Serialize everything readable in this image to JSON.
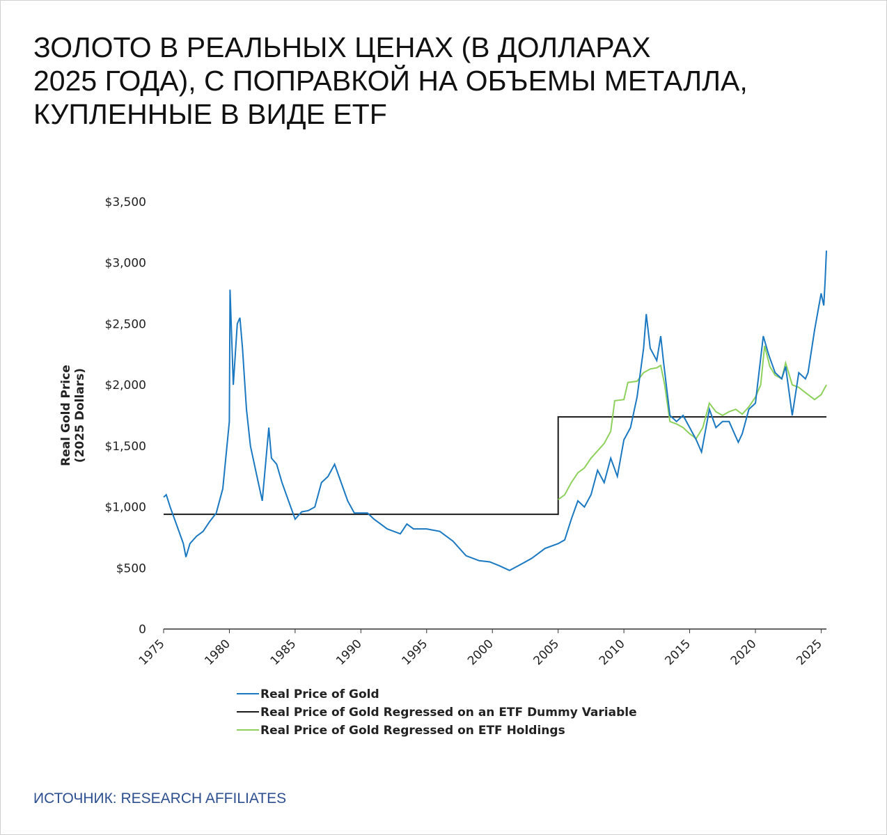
{
  "title": [
    "ЗОЛОТО В РЕАЛЬНЫХ ЦЕНАХ (В ДОЛЛАРАХ",
    "2025 ГОДА), С ПОПРАВКОЙ НА ОБЪЕМЫ МЕТАЛЛА,",
    "КУПЛЕННЫЕ В ВИДЕ ETF"
  ],
  "source": "ИСТОЧНИК: RESEARCH AFFILIATES",
  "chart_data": {
    "type": "line",
    "ylabel": [
      "Real Gold Price",
      "(2025 Dollars)"
    ],
    "xlim": [
      1975,
      2025.4
    ],
    "xticks": [
      1975,
      1980,
      1985,
      1990,
      1995,
      2000,
      2005,
      2010,
      2015,
      2020,
      2025
    ],
    "ylim": [
      0,
      3500
    ],
    "yticks": [
      0,
      {
        "value": 500,
        "label": "$500"
      },
      {
        "value": 1000,
        "label": "$1,000"
      },
      {
        "value": 1500,
        "label": "$1,500"
      },
      {
        "value": 2000,
        "label": "$2,000"
      },
      {
        "value": 2500,
        "label": "$2,500"
      },
      {
        "value": 3000,
        "label": "$3,000"
      },
      {
        "value": 3500,
        "label": "$3,500"
      }
    ],
    "series": [
      {
        "name": "Real Price of Gold",
        "color": "#1a78c2",
        "x": [
          1975,
          1975.2,
          1975.5,
          1976,
          1976.5,
          1976.7,
          1977,
          1977.5,
          1978,
          1978.5,
          1979,
          1979.5,
          1980,
          1980.05,
          1980.3,
          1980.6,
          1980.8,
          1981,
          1981.3,
          1981.6,
          1982,
          1982.5,
          1983,
          1983.2,
          1983.6,
          1984,
          1984.5,
          1985,
          1985.5,
          1986,
          1986.5,
          1987,
          1987.5,
          1988,
          1988.5,
          1989,
          1989.5,
          1990,
          1990.5,
          1991,
          1992,
          1993,
          1993.5,
          1994,
          1995,
          1996,
          1997,
          1998,
          1999,
          1999.8,
          2000.5,
          2001.3,
          2002,
          2003,
          2004,
          2005,
          2005.5,
          2006,
          2006.5,
          2007,
          2007.5,
          2008,
          2008.5,
          2009,
          2009.5,
          2010,
          2010.5,
          2011,
          2011.5,
          2011.7,
          2012,
          2012.5,
          2012.8,
          2013,
          2013.5,
          2014,
          2014.5,
          2015,
          2015.5,
          2015.9,
          2016.5,
          2017,
          2017.5,
          2018,
          2018.7,
          2019,
          2019.5,
          2020,
          2020.6,
          2021,
          2021.5,
          2022,
          2022.3,
          2022.8,
          2023.3,
          2023.8,
          2024,
          2024.5,
          2025,
          2025.2,
          2025.3,
          2025.4
        ],
        "values": [
          1080,
          1100,
          1000,
          850,
          700,
          590,
          700,
          760,
          800,
          880,
          950,
          1150,
          1700,
          2780,
          2000,
          2500,
          2550,
          2300,
          1800,
          1500,
          1300,
          1050,
          1650,
          1400,
          1350,
          1200,
          1050,
          900,
          960,
          970,
          1000,
          1200,
          1250,
          1350,
          1200,
          1050,
          950,
          950,
          950,
          900,
          820,
          780,
          860,
          820,
          820,
          800,
          720,
          600,
          560,
          550,
          520,
          480,
          520,
          580,
          660,
          700,
          730,
          900,
          1050,
          1000,
          1100,
          1300,
          1200,
          1400,
          1250,
          1550,
          1650,
          1900,
          2300,
          2580,
          2300,
          2200,
          2400,
          2200,
          1750,
          1700,
          1750,
          1650,
          1550,
          1450,
          1800,
          1650,
          1700,
          1700,
          1530,
          1600,
          1800,
          1850,
          2400,
          2250,
          2100,
          2050,
          2150,
          1750,
          2100,
          2050,
          2100,
          2450,
          2750,
          2650,
          2850,
          3100
        ]
      },
      {
        "name": "Real Price of Gold Regressed on an ETF Dummy Variable",
        "color": "#1a1a1a",
        "x": [
          1975,
          2005,
          2005,
          2025.4
        ],
        "values": [
          940,
          940,
          1738,
          1738
        ]
      },
      {
        "name": "Real Price of Gold Regressed on ETF Holdings",
        "color": "#8ed05c",
        "x": [
          2005,
          2005.5,
          2006,
          2006.5,
          2007,
          2007.5,
          2008,
          2008.5,
          2009,
          2009.3,
          2010,
          2010.3,
          2011,
          2011.5,
          2012,
          2012.5,
          2012.8,
          2013.1,
          2013.5,
          2014,
          2014.5,
          2015,
          2015.5,
          2016,
          2016.5,
          2017,
          2017.5,
          2018,
          2018.5,
          2019,
          2019.5,
          2020,
          2020.4,
          2020.7,
          2021.1,
          2021.5,
          2022,
          2022.3,
          2022.8,
          2023.3,
          2024,
          2024.5,
          2025,
          2025.4
        ],
        "values": [
          1060,
          1100,
          1200,
          1280,
          1320,
          1400,
          1460,
          1520,
          1620,
          1870,
          1880,
          2020,
          2030,
          2100,
          2130,
          2140,
          2160,
          2000,
          1700,
          1680,
          1650,
          1600,
          1560,
          1650,
          1850,
          1780,
          1750,
          1780,
          1800,
          1760,
          1820,
          1900,
          2000,
          2320,
          2150,
          2080,
          2050,
          2180,
          2000,
          1980,
          1920,
          1880,
          1920,
          2000
        ]
      }
    ]
  }
}
